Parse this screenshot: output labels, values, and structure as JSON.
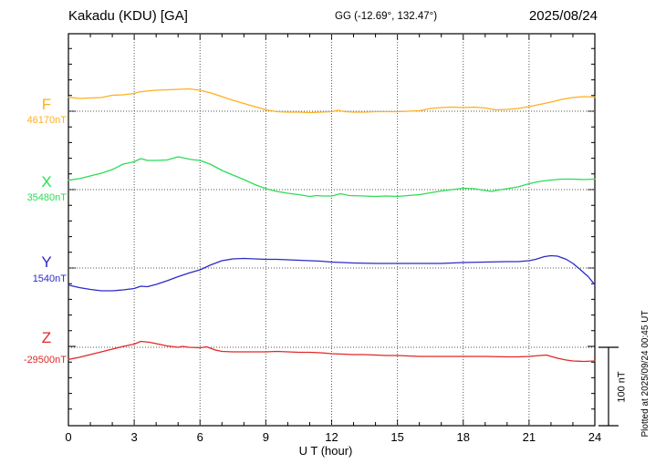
{
  "header": {
    "station": "Kakadu (KDU)  [GA]",
    "coords": "GG (-12.69°, 132.47°)",
    "date": "2025/08/24"
  },
  "scale_bar": {
    "label": "100 nT",
    "value_nT": 100
  },
  "side_note": "Plotted at 2025/09/24 00:45 UT",
  "chart_data": {
    "type": "line",
    "title": "Kakadu (KDU) [GA] magnetogram 2025/08/24",
    "xlabel": "U T (hour)",
    "x_range": [
      0,
      24
    ],
    "x_ticks": [
      0,
      3,
      6,
      9,
      12,
      15,
      18,
      21,
      24
    ],
    "x_minor_tick_hours": 1,
    "nT_per_minor_tick": 20,
    "baseline_spacing_nT": 100,
    "grid": "dotted vertical lines every 3 h; dotted horizontal line at each channel baseline",
    "series": [
      {
        "name": "F",
        "baseline_label": "46170nT",
        "baseline_nT": 46170,
        "color": "#FFAF1E",
        "offsets_nT": [
          [
            0,
            17.8
          ],
          [
            0.5,
            16.3
          ],
          [
            1,
            16.9
          ],
          [
            1.5,
            17.4
          ],
          [
            2,
            20.3
          ],
          [
            2.5,
            20.9
          ],
          [
            3,
            22.7
          ],
          [
            3.2,
            24.4
          ],
          [
            3.5,
            25.6
          ],
          [
            4,
            26.7
          ],
          [
            4.5,
            27.3
          ],
          [
            5,
            27.9
          ],
          [
            5.5,
            28.5
          ],
          [
            6,
            26.7
          ],
          [
            6.5,
            23.3
          ],
          [
            7,
            18.6
          ],
          [
            7.5,
            14.0
          ],
          [
            8,
            9.9
          ],
          [
            8.5,
            5.8
          ],
          [
            9,
            1.7
          ],
          [
            9.5,
            -0.6
          ],
          [
            10,
            -1.2
          ],
          [
            10.5,
            -1.2
          ],
          [
            11,
            -1.7
          ],
          [
            11.5,
            -1.2
          ],
          [
            12,
            -0.6
          ],
          [
            12.3,
            1.2
          ],
          [
            12.6,
            -0.6
          ],
          [
            13,
            -1.2
          ],
          [
            13.5,
            -1.2
          ],
          [
            14,
            -0.6
          ],
          [
            15,
            -0.6
          ],
          [
            15.5,
            0
          ],
          [
            16,
            0.6
          ],
          [
            16.5,
            3.5
          ],
          [
            17,
            4.7
          ],
          [
            17.5,
            5.2
          ],
          [
            18,
            4.7
          ],
          [
            18.5,
            5.2
          ],
          [
            19,
            4.1
          ],
          [
            19.5,
            1.7
          ],
          [
            20,
            2.3
          ],
          [
            20.5,
            3.5
          ],
          [
            21,
            5.8
          ],
          [
            21.5,
            8.7
          ],
          [
            22,
            11.6
          ],
          [
            22.5,
            15.1
          ],
          [
            23,
            17.4
          ],
          [
            23.5,
            18.6
          ],
          [
            24,
            18.0
          ]
        ]
      },
      {
        "name": "X",
        "baseline_label": "35480nT",
        "baseline_nT": 35480,
        "color": "#2EDC55",
        "offsets_nT": [
          [
            0,
            12.0
          ],
          [
            0.5,
            14.0
          ],
          [
            1,
            17.4
          ],
          [
            1.5,
            20.9
          ],
          [
            2,
            25.6
          ],
          [
            2.5,
            32.6
          ],
          [
            3,
            35.5
          ],
          [
            3.3,
            39.5
          ],
          [
            3.6,
            37.2
          ],
          [
            4,
            37.2
          ],
          [
            4.5,
            37.8
          ],
          [
            5,
            41.9
          ],
          [
            5.3,
            40.1
          ],
          [
            5.6,
            38.4
          ],
          [
            6,
            37.2
          ],
          [
            6.5,
            32.0
          ],
          [
            7,
            24.4
          ],
          [
            7.5,
            18.6
          ],
          [
            8,
            12.8
          ],
          [
            8.5,
            6.4
          ],
          [
            9,
            1.2
          ],
          [
            9.5,
            -2.3
          ],
          [
            10,
            -4.7
          ],
          [
            10.5,
            -6.4
          ],
          [
            11,
            -8.7
          ],
          [
            11.3,
            -7.6
          ],
          [
            11.6,
            -8.1
          ],
          [
            12,
            -8.1
          ],
          [
            12.4,
            -5.2
          ],
          [
            12.8,
            -7.6
          ],
          [
            13.5,
            -8.1
          ],
          [
            14,
            -8.7
          ],
          [
            14.5,
            -8.1
          ],
          [
            15,
            -8.7
          ],
          [
            15.5,
            -7.6
          ],
          [
            16,
            -6.4
          ],
          [
            16.5,
            -4.1
          ],
          [
            17,
            -1.7
          ],
          [
            17.5,
            0
          ],
          [
            18,
            1.7
          ],
          [
            18.5,
            1.2
          ],
          [
            19,
            -1.2
          ],
          [
            19.3,
            -2.3
          ],
          [
            19.6,
            -0.6
          ],
          [
            20,
            1.2
          ],
          [
            20.5,
            3.5
          ],
          [
            21,
            7.6
          ],
          [
            21.5,
            10.5
          ],
          [
            22,
            12.2
          ],
          [
            22.5,
            13.4
          ],
          [
            23,
            13.4
          ],
          [
            23.5,
            12.8
          ],
          [
            24,
            13.4
          ]
        ]
      },
      {
        "name": "Y",
        "baseline_label": "1540nT",
        "baseline_nT": 1540,
        "color": "#2B2BC4",
        "offsets_nT": [
          [
            0,
            -21.7
          ],
          [
            0.5,
            -25.0
          ],
          [
            1,
            -27.3
          ],
          [
            1.5,
            -29.1
          ],
          [
            2,
            -29.1
          ],
          [
            2.5,
            -27.9
          ],
          [
            3,
            -26.2
          ],
          [
            3.3,
            -23.3
          ],
          [
            3.6,
            -23.8
          ],
          [
            4,
            -20.9
          ],
          [
            4.5,
            -16.3
          ],
          [
            5,
            -11.0
          ],
          [
            5.5,
            -6.4
          ],
          [
            6,
            -2.3
          ],
          [
            6.5,
            4.1
          ],
          [
            7,
            9.3
          ],
          [
            7.5,
            11.6
          ],
          [
            8,
            12.2
          ],
          [
            8.5,
            11.6
          ],
          [
            9,
            11.0
          ],
          [
            9.5,
            11.0
          ],
          [
            10,
            10.5
          ],
          [
            10.5,
            9.9
          ],
          [
            11,
            9.3
          ],
          [
            11.5,
            8.7
          ],
          [
            12,
            7.6
          ],
          [
            12.5,
            7.0
          ],
          [
            13,
            6.4
          ],
          [
            14,
            5.8
          ],
          [
            15,
            5.8
          ],
          [
            16,
            5.8
          ],
          [
            17,
            5.8
          ],
          [
            17.5,
            6.4
          ],
          [
            18,
            7.0
          ],
          [
            19,
            7.6
          ],
          [
            20,
            8.1
          ],
          [
            20.5,
            8.1
          ],
          [
            21,
            9.3
          ],
          [
            21.3,
            11.0
          ],
          [
            21.7,
            14.5
          ],
          [
            22,
            15.7
          ],
          [
            22.3,
            15.1
          ],
          [
            22.7,
            11.0
          ],
          [
            23,
            5.8
          ],
          [
            23.3,
            -1.2
          ],
          [
            23.7,
            -11.0
          ],
          [
            24,
            -21.5
          ]
        ]
      },
      {
        "name": "Z",
        "baseline_label": "-29500nT",
        "baseline_nT": -29500,
        "color": "#E02828",
        "offsets_nT": [
          [
            0,
            -15.5
          ],
          [
            0.5,
            -12.8
          ],
          [
            1,
            -9.3
          ],
          [
            1.5,
            -5.8
          ],
          [
            2,
            -2.3
          ],
          [
            2.5,
            1.2
          ],
          [
            3,
            4.1
          ],
          [
            3.3,
            7.6
          ],
          [
            3.7,
            6.4
          ],
          [
            4,
            4.7
          ],
          [
            4.5,
            1.7
          ],
          [
            5,
            0
          ],
          [
            5.2,
            1.2
          ],
          [
            5.5,
            0
          ],
          [
            6,
            -0.6
          ],
          [
            6.3,
            0.6
          ],
          [
            6.7,
            -3.5
          ],
          [
            7,
            -5.2
          ],
          [
            7.5,
            -5.8
          ],
          [
            8,
            -5.8
          ],
          [
            9,
            -5.8
          ],
          [
            9.5,
            -5.2
          ],
          [
            10,
            -5.8
          ],
          [
            10.5,
            -6.4
          ],
          [
            11,
            -6.4
          ],
          [
            11.5,
            -7.0
          ],
          [
            12,
            -8.1
          ],
          [
            12.5,
            -8.7
          ],
          [
            13,
            -9.3
          ],
          [
            13.5,
            -9.3
          ],
          [
            14,
            -9.9
          ],
          [
            14.5,
            -10.5
          ],
          [
            15,
            -10.5
          ],
          [
            15.5,
            -11.0
          ],
          [
            16,
            -11.6
          ],
          [
            17,
            -11.6
          ],
          [
            18,
            -11.6
          ],
          [
            19,
            -11.6
          ],
          [
            20,
            -12.2
          ],
          [
            20.5,
            -12.2
          ],
          [
            21,
            -11.6
          ],
          [
            21.5,
            -10.5
          ],
          [
            21.8,
            -9.9
          ],
          [
            22,
            -11.6
          ],
          [
            22.3,
            -14.0
          ],
          [
            22.7,
            -16.3
          ],
          [
            23,
            -17.4
          ],
          [
            23.5,
            -18.0
          ],
          [
            24,
            -17.4
          ]
        ]
      }
    ]
  }
}
